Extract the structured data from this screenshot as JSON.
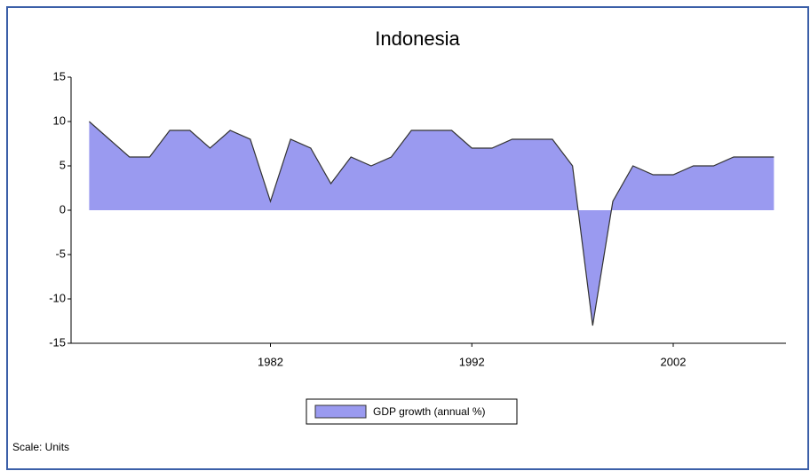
{
  "chart_data": {
    "type": "area",
    "title": "Indonesia",
    "x": [
      1973,
      1974,
      1975,
      1976,
      1977,
      1978,
      1979,
      1980,
      1981,
      1982,
      1983,
      1984,
      1985,
      1986,
      1987,
      1988,
      1989,
      1990,
      1991,
      1992,
      1993,
      1994,
      1995,
      1996,
      1997,
      1998,
      1999,
      2000,
      2001,
      2002,
      2003,
      2004,
      2005,
      2006,
      2007
    ],
    "series": [
      {
        "name": "GDP growth (annual %)",
        "color": "#9a9af0",
        "values": [
          10,
          8,
          6,
          6,
          9,
          9,
          7,
          9,
          8,
          1,
          8,
          7,
          3,
          6,
          5,
          6,
          9,
          9,
          9,
          7,
          7,
          8,
          8,
          8,
          5,
          -13,
          1,
          5,
          4,
          4,
          5,
          5,
          6,
          6,
          6
        ]
      }
    ],
    "xlim": [
      1972.1,
      2007.6
    ],
    "xticks": [
      1982,
      1992,
      2002
    ],
    "ylim": [
      -15,
      15
    ],
    "yticks": [
      15,
      10,
      5,
      0,
      -5,
      -10,
      -15
    ],
    "legend": "bottom",
    "footnote": "Scale: Units"
  }
}
